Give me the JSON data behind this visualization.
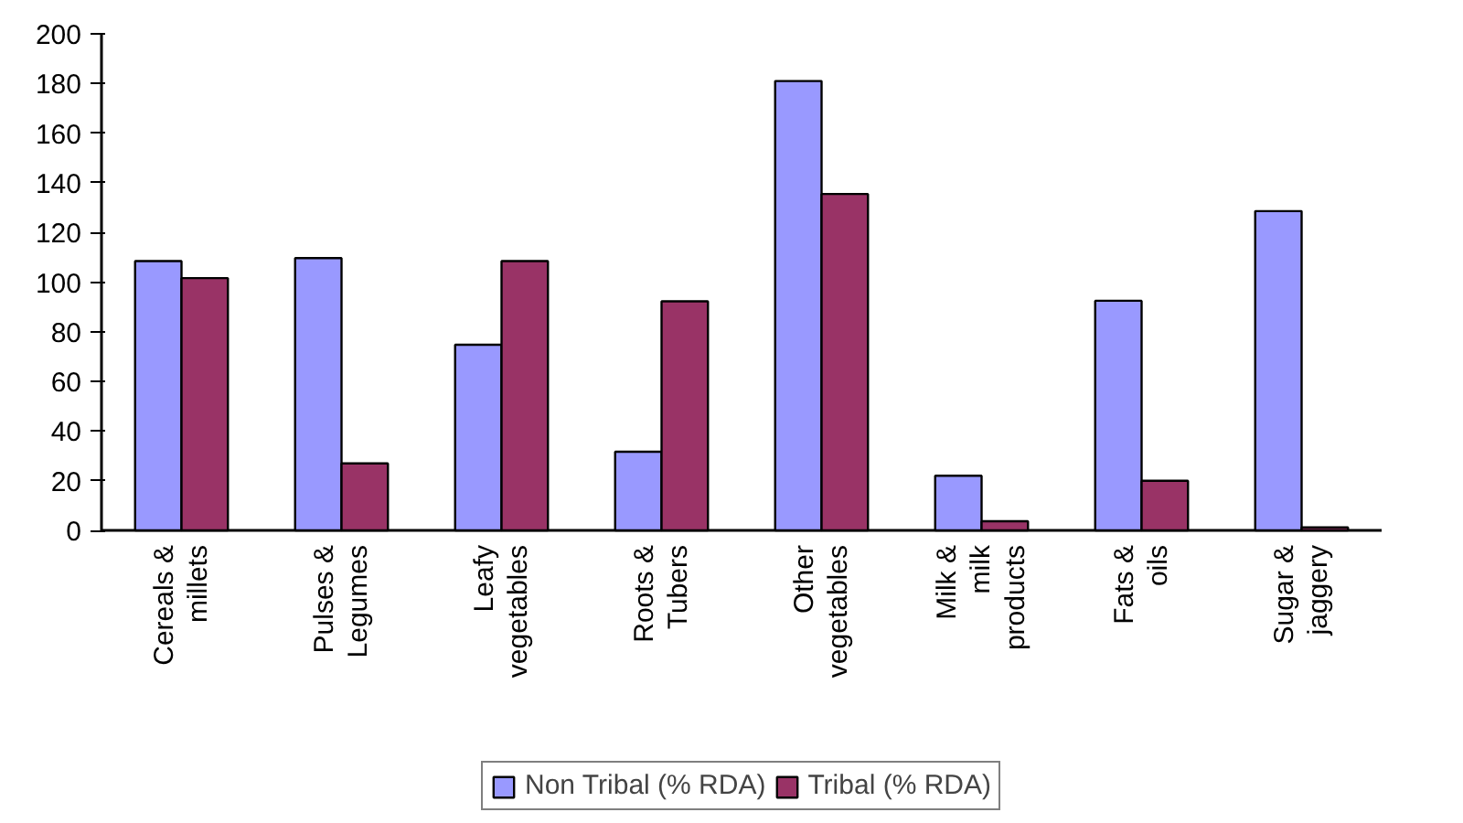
{
  "chart_data": {
    "type": "bar",
    "categories": [
      "Cereals & millets",
      "Pulses & Legumes",
      "Leafy vegetables",
      "Roots & Tubers",
      "Other vegetables",
      "Milk & milk products",
      "Fats & oils",
      "Sugar & jaggery"
    ],
    "series": [
      {
        "name": "Non Tribal (% RDA)",
        "color": "#9999ff",
        "values": [
          108.5,
          109.7,
          74.8,
          31.7,
          181,
          22,
          92.5,
          128.6
        ]
      },
      {
        "name": "Tribal (% RDA)",
        "color": "#993366",
        "values": [
          101.6,
          27,
          108.5,
          92.3,
          135.5,
          3.7,
          20,
          1.2
        ]
      }
    ],
    "ylim": [
      0,
      200
    ],
    "yticks": [
      0,
      20,
      40,
      60,
      80,
      100,
      120,
      140,
      160,
      180,
      200
    ],
    "grid": false,
    "legend": "bottom"
  }
}
